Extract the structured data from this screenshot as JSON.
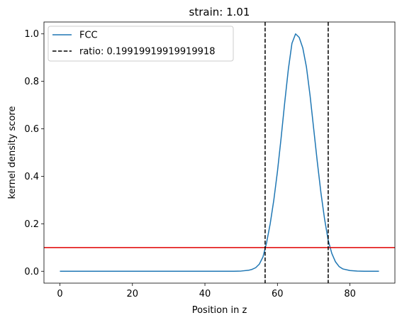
{
  "chart_data": {
    "type": "line",
    "title": "strain: 1.01",
    "xlabel": "Position in z",
    "ylabel": "kernel density score",
    "xlim": [
      -4.4,
      92.4
    ],
    "ylim": [
      -0.05,
      1.05
    ],
    "xticks": [
      0,
      20,
      40,
      60,
      80
    ],
    "yticks": [
      0.0,
      0.2,
      0.4,
      0.6,
      0.8,
      1.0
    ],
    "xtick_labels": [
      "0",
      "20",
      "40",
      "60",
      "80"
    ],
    "ytick_labels": [
      "0.0",
      "0.2",
      "0.4",
      "0.6",
      "0.8",
      "1.0"
    ],
    "grid": false,
    "legend_position": "top-left",
    "series": [
      {
        "name": "FCC",
        "color": "#1f77b4",
        "style": "solid",
        "x": [
          0,
          10,
          20,
          30,
          40,
          48,
          50,
          52,
          53,
          54,
          55,
          56,
          56.5,
          57,
          58,
          59,
          60,
          61,
          62,
          63,
          64,
          65,
          66,
          67,
          68,
          69,
          70,
          71,
          72,
          73,
          74,
          75,
          76,
          77,
          78,
          80,
          82,
          84,
          86,
          88
        ],
        "y": [
          0,
          0,
          0,
          0,
          0,
          0,
          0.001,
          0.004,
          0.008,
          0.015,
          0.03,
          0.06,
          0.09,
          0.12,
          0.2,
          0.3,
          0.42,
          0.56,
          0.71,
          0.85,
          0.96,
          1.0,
          0.985,
          0.94,
          0.86,
          0.74,
          0.6,
          0.46,
          0.33,
          0.22,
          0.13,
          0.075,
          0.04,
          0.02,
          0.01,
          0.003,
          0.001,
          0,
          0,
          0
        ]
      }
    ],
    "vlines": [
      {
        "name": "ratio: 0.19919919919919918",
        "x_values": [
          56.6,
          74.0
        ],
        "color": "#000000",
        "style": "dashed"
      }
    ],
    "hlines": [
      {
        "y": 0.1,
        "color": "#e00000",
        "style": "solid"
      }
    ]
  }
}
